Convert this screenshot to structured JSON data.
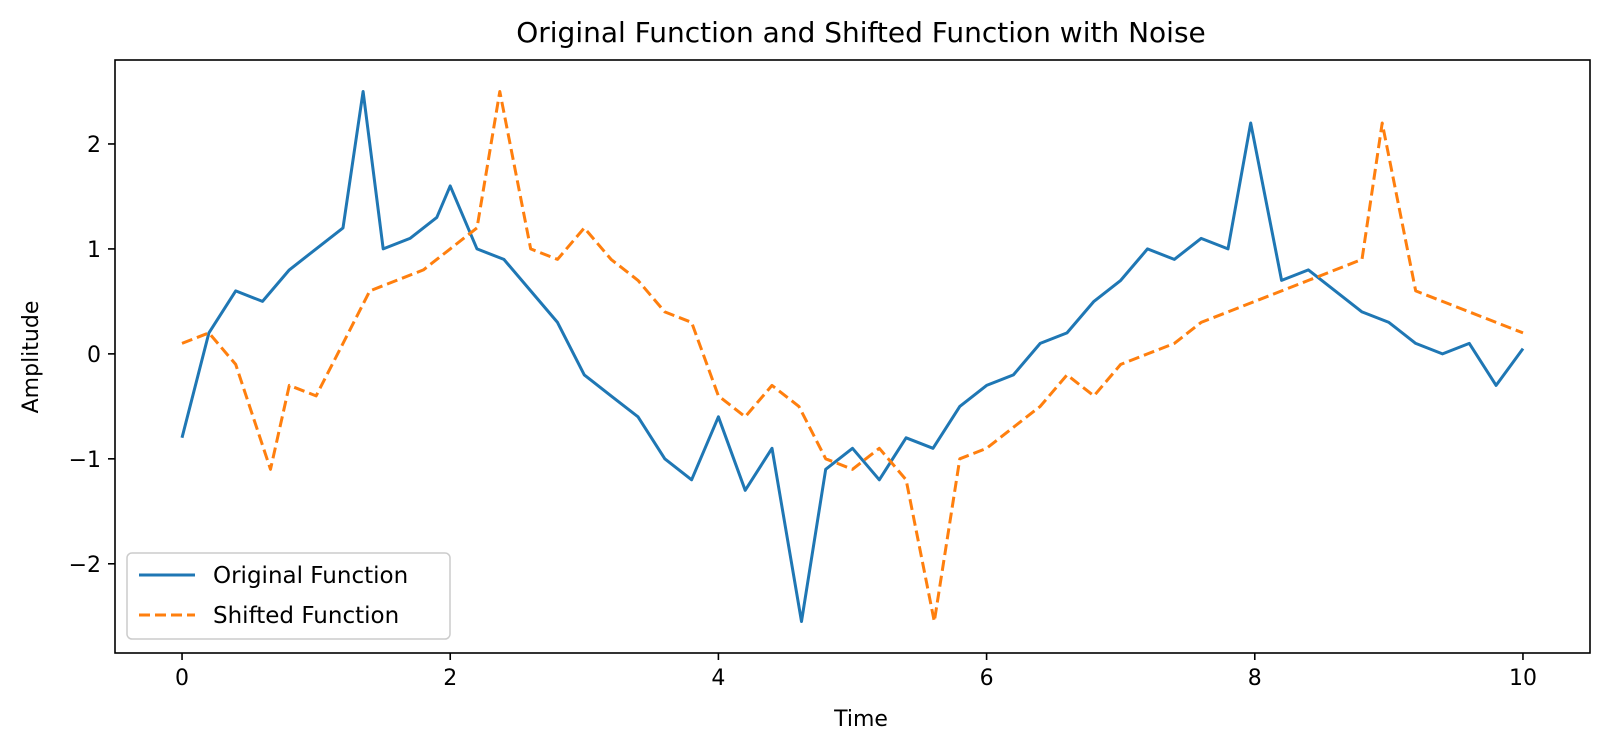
{
  "chart_data": {
    "type": "line",
    "title": "Original Function and Shifted Function with Noise",
    "xlabel": "Time",
    "ylabel": "Amplitude",
    "xlim": [
      -0.5,
      10.5
    ],
    "ylim": [
      -2.85,
      2.8
    ],
    "xticks": [
      0,
      2,
      4,
      6,
      8,
      10
    ],
    "yticks": [
      -2,
      -1,
      0,
      1,
      2
    ],
    "grid": false,
    "legend_position": "lower-left",
    "series": [
      {
        "name": "Original Function",
        "color": "#1f77b4",
        "dash": "solid",
        "x": [
          0,
          0.2,
          0.4,
          0.6,
          0.8,
          1.0,
          1.2,
          1.35,
          1.5,
          1.7,
          1.9,
          2.0,
          2.2,
          2.4,
          2.6,
          2.8,
          3.0,
          3.2,
          3.4,
          3.6,
          3.8,
          4.0,
          4.2,
          4.4,
          4.62,
          4.8,
          5.0,
          5.2,
          5.4,
          5.6,
          5.8,
          6.0,
          6.2,
          6.4,
          6.6,
          6.8,
          7.0,
          7.2,
          7.4,
          7.6,
          7.8,
          7.97,
          8.2,
          8.4,
          8.6,
          8.8,
          9.0,
          9.2,
          9.4,
          9.6,
          9.8,
          10.0
        ],
        "y": [
          -0.8,
          0.2,
          0.6,
          0.5,
          0.8,
          1.0,
          1.2,
          2.5,
          1.0,
          1.1,
          1.3,
          1.6,
          1.0,
          0.9,
          0.6,
          0.3,
          -0.2,
          -0.4,
          -0.6,
          -1.0,
          -1.2,
          -0.6,
          -1.3,
          -0.9,
          -2.55,
          -1.1,
          -0.9,
          -1.2,
          -0.8,
          -0.9,
          -0.5,
          -0.3,
          -0.2,
          0.1,
          0.2,
          0.5,
          0.7,
          1.0,
          0.9,
          1.1,
          1.0,
          2.2,
          0.7,
          0.8,
          0.6,
          0.4,
          0.3,
          0.1,
          0.0,
          0.1,
          -0.3,
          0.05
        ]
      },
      {
        "name": "Shifted Function",
        "color": "#ff7f0e",
        "dash": "dashed",
        "x": [
          0,
          0.2,
          0.4,
          0.66,
          0.8,
          1.0,
          1.2,
          1.4,
          1.6,
          1.8,
          2.0,
          2.2,
          2.37,
          2.6,
          2.8,
          3.0,
          3.2,
          3.4,
          3.6,
          3.8,
          4.0,
          4.2,
          4.4,
          4.6,
          4.8,
          5.0,
          5.2,
          5.4,
          5.61,
          5.8,
          6.0,
          6.2,
          6.4,
          6.6,
          6.8,
          7.0,
          7.2,
          7.4,
          7.6,
          7.8,
          8.0,
          8.2,
          8.4,
          8.6,
          8.8,
          8.95,
          9.2,
          9.4,
          9.6,
          9.8,
          10.0
        ],
        "y": [
          0.1,
          0.2,
          -0.1,
          -1.1,
          -0.3,
          -0.4,
          0.1,
          0.6,
          0.7,
          0.8,
          1.0,
          1.2,
          2.5,
          1.0,
          0.9,
          1.2,
          0.9,
          0.7,
          0.4,
          0.3,
          -0.4,
          -0.6,
          -0.3,
          -0.5,
          -1.0,
          -1.1,
          -0.9,
          -1.2,
          -2.55,
          -1.0,
          -0.9,
          -0.7,
          -0.5,
          -0.2,
          -0.4,
          -0.1,
          0.0,
          0.1,
          0.3,
          0.4,
          0.5,
          0.6,
          0.7,
          0.8,
          0.9,
          2.2,
          0.6,
          0.5,
          0.4,
          0.3,
          0.2
        ]
      }
    ]
  }
}
